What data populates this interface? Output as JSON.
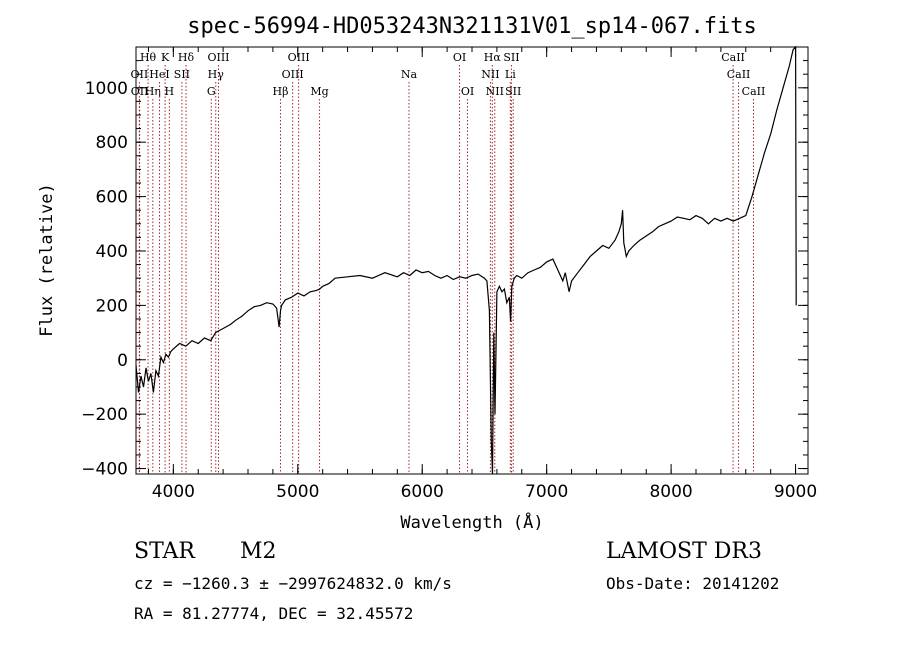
{
  "title": "spec-56994-HD053243N321131V01_sp14-067.fits",
  "info": {
    "class_label": "STAR",
    "subclass_label": "M2",
    "survey": "LAMOST DR3",
    "cz_line": "cz = −1260.3 ± −2997624832.0 km/s",
    "obs_date": "Obs-Date: 20141202",
    "coords": "RA =  81.27774, DEC =  32.45572"
  },
  "chart_data": {
    "type": "line",
    "title": "spec-56994-HD053243N321131V01_sp14-067.fits",
    "xlabel": "Wavelength (Å)",
    "ylabel": "Flux (relative)",
    "xlim": [
      3700,
      9100
    ],
    "ylim": [
      -420,
      1150
    ],
    "xticks": [
      4000,
      5000,
      6000,
      7000,
      8000,
      9000
    ],
    "yticks": [
      -400,
      -200,
      0,
      200,
      400,
      600,
      800,
      1000
    ],
    "x_minor_step": 200,
    "y_minor_step": 50,
    "line_color": "#000000",
    "marker_color": "#a52a2a",
    "series": [
      {
        "x": [
          3700,
          3720,
          3740,
          3760,
          3780,
          3800,
          3820,
          3840,
          3860,
          3880,
          3900,
          3920,
          3940,
          3960,
          3980,
          4000,
          4050,
          4100,
          4150,
          4200,
          4250,
          4300,
          4340,
          4380,
          4420,
          4460,
          4500,
          4550,
          4600,
          4650,
          4700,
          4750,
          4800,
          4830,
          4850,
          4861,
          4870,
          4900,
          4950,
          5000,
          5050,
          5100,
          5150,
          5175,
          5200,
          5250,
          5300,
          5400,
          5500,
          5600,
          5700,
          5800,
          5850,
          5900,
          5950,
          6000,
          6050,
          6100,
          6150,
          6200,
          6250,
          6300,
          6350,
          6400,
          6450,
          6500,
          6520,
          6540,
          6555,
          6565,
          6575,
          6585,
          6600,
          6620,
          6640,
          6660,
          6680,
          6700,
          6710,
          6720,
          6740,
          6760,
          6800,
          6850,
          6900,
          6950,
          7000,
          7050,
          7100,
          7130,
          7150,
          7180,
          7200,
          7250,
          7300,
          7350,
          7400,
          7450,
          7500,
          7550,
          7580,
          7600,
          7610,
          7620,
          7640,
          7660,
          7700,
          7750,
          7800,
          7850,
          7900,
          7950,
          8000,
          8050,
          8100,
          8150,
          8200,
          8250,
          8300,
          8350,
          8400,
          8450,
          8500,
          8550,
          8600,
          8650,
          8700,
          8750,
          8800,
          8850,
          8900,
          8950,
          8980,
          9000,
          9005
        ],
        "y": [
          -20,
          -120,
          -60,
          -100,
          -30,
          -80,
          -50,
          -120,
          -40,
          -60,
          10,
          -10,
          20,
          10,
          30,
          40,
          60,
          50,
          70,
          60,
          80,
          70,
          100,
          110,
          120,
          130,
          145,
          160,
          180,
          195,
          200,
          210,
          205,
          190,
          120,
          180,
          200,
          220,
          230,
          245,
          235,
          250,
          255,
          260,
          270,
          280,
          300,
          305,
          310,
          300,
          320,
          305,
          320,
          310,
          330,
          320,
          325,
          310,
          300,
          310,
          295,
          305,
          300,
          310,
          315,
          300,
          290,
          180,
          -300,
          -420,
          100,
          -200,
          250,
          270,
          250,
          260,
          210,
          230,
          140,
          270,
          300,
          310,
          300,
          320,
          330,
          340,
          360,
          370,
          320,
          290,
          320,
          250,
          290,
          320,
          350,
          380,
          400,
          420,
          410,
          440,
          470,
          500,
          550,
          430,
          380,
          400,
          420,
          440,
          455,
          470,
          490,
          500,
          510,
          525,
          520,
          515,
          530,
          520,
          500,
          520,
          510,
          520,
          510,
          520,
          530,
          600,
          680,
          760,
          830,
          920,
          1000,
          1080,
          1140,
          1160,
          200
        ]
      }
    ],
    "line_markers": [
      {
        "label": "Hθ",
        "x": 3797,
        "row": 1
      },
      {
        "label": "OII",
        "x": 3727,
        "row": 2
      },
      {
        "label": "OII",
        "x": 3729,
        "row": 3
      },
      {
        "label": "Hη",
        "x": 3835,
        "row": 3
      },
      {
        "label": "HeI",
        "x": 3889,
        "row": 2
      },
      {
        "label": "K",
        "x": 3934,
        "row": 1
      },
      {
        "label": "H",
        "x": 3968,
        "row": 3
      },
      {
        "label": "SII",
        "x": 4069,
        "row": 2
      },
      {
        "label": "Hδ",
        "x": 4102,
        "row": 1
      },
      {
        "label": "OIII",
        "x": 4363,
        "row": 1
      },
      {
        "label": "Hγ",
        "x": 4341,
        "row": 2
      },
      {
        "label": "G",
        "x": 4305,
        "row": 3
      },
      {
        "label": "Hβ",
        "x": 4861,
        "row": 3
      },
      {
        "label": "OIII",
        "x": 4959,
        "row": 2
      },
      {
        "label": "OIII",
        "x": 5007,
        "row": 1
      },
      {
        "label": "Mg",
        "x": 5175,
        "row": 3
      },
      {
        "label": "Na",
        "x": 5894,
        "row": 2
      },
      {
        "label": "OI",
        "x": 6300,
        "row": 1
      },
      {
        "label": "OI",
        "x": 6364,
        "row": 3
      },
      {
        "label": "Hα",
        "x": 6563,
        "row": 1
      },
      {
        "label": "NII",
        "x": 6548,
        "row": 2
      },
      {
        "label": "NII",
        "x": 6583,
        "row": 3
      },
      {
        "label": "SII",
        "x": 6717,
        "row": 1
      },
      {
        "label": "Li",
        "x": 6708,
        "row": 2
      },
      {
        "label": "SII",
        "x": 6731,
        "row": 3
      },
      {
        "label": "CaII",
        "x": 8498,
        "row": 1
      },
      {
        "label": "CaII",
        "x": 8542,
        "row": 2
      },
      {
        "label": "CaII",
        "x": 8662,
        "row": 3
      }
    ]
  }
}
